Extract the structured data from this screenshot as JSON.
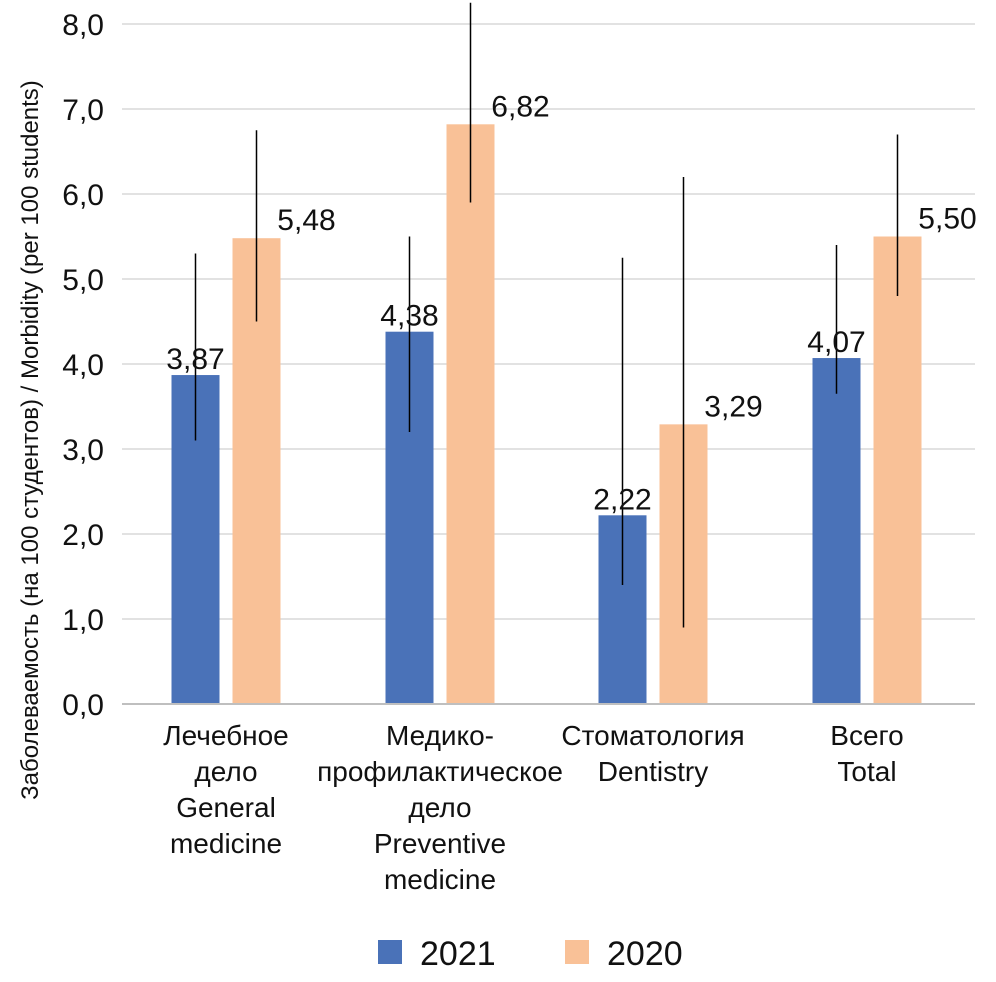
{
  "chart_data": {
    "type": "bar",
    "title": "",
    "ylabel": "Заболеваемость (на 100 студентов) / Morbidity (per 100 students)",
    "xlabel": "",
    "ylim": [
      0,
      8
    ],
    "yticks": [
      "0,0",
      "1,0",
      "2,0",
      "3,0",
      "4,0",
      "5,0",
      "6,0",
      "7,0",
      "8,0"
    ],
    "grid": true,
    "legend_position": "bottom",
    "categories": [
      [
        "Лечебное",
        "дело",
        "General",
        "medicine"
      ],
      [
        "Медико-",
        "профилактическое",
        "дело",
        "Preventive",
        "medicine"
      ],
      [
        "Стоматология",
        "Dentistry"
      ],
      [
        "Всего",
        "Total"
      ]
    ],
    "series": [
      {
        "name": "2021",
        "color": "#4a72b8",
        "values": [
          3.87,
          4.38,
          2.22,
          4.07
        ],
        "labels": [
          "3,87",
          "4,38",
          "2,22",
          "4,07"
        ],
        "error_low": [
          3.1,
          3.2,
          1.4,
          3.65
        ],
        "error_high": [
          5.3,
          5.5,
          5.25,
          5.4
        ]
      },
      {
        "name": "2020",
        "color": "#f9c197",
        "values": [
          5.48,
          6.82,
          3.29,
          5.5
        ],
        "labels": [
          "5,48",
          "6,82",
          "3,29",
          "5,50"
        ],
        "error_low": [
          4.5,
          5.9,
          0.9,
          4.8
        ],
        "error_high": [
          6.75,
          8.3,
          6.2,
          6.7
        ]
      }
    ]
  }
}
